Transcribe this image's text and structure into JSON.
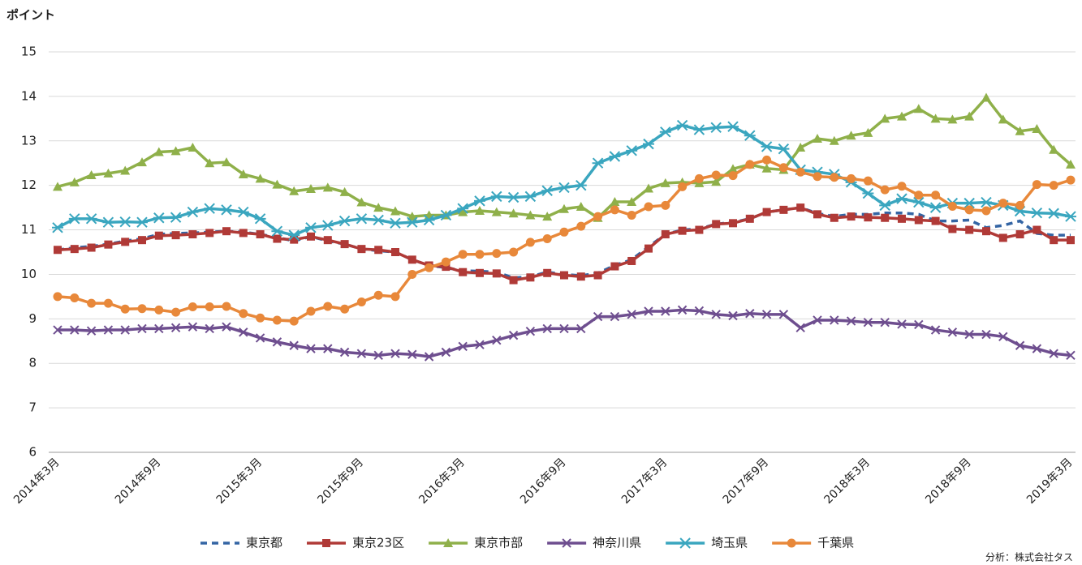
{
  "chart_data": {
    "type": "line",
    "y_label": "ポイント",
    "source": "分析：株式会社タス",
    "categories": [
      "2014年3月",
      null,
      null,
      null,
      null,
      null,
      "2014年9月",
      null,
      null,
      null,
      null,
      null,
      "2015年3月",
      null,
      null,
      null,
      null,
      null,
      "2015年9月",
      null,
      null,
      null,
      null,
      null,
      "2016年3月",
      null,
      null,
      null,
      null,
      null,
      "2016年9月",
      null,
      null,
      null,
      null,
      null,
      "2017年3月",
      null,
      null,
      null,
      null,
      null,
      "2017年9月",
      null,
      null,
      null,
      null,
      null,
      "2018年3月",
      null,
      null,
      null,
      null,
      null,
      "2018年9月",
      null,
      null,
      null,
      null,
      null,
      "2019年3月"
    ],
    "ylim": [
      6,
      15
    ],
    "yticks": [
      6,
      7,
      8,
      9,
      10,
      11,
      12,
      13,
      14,
      15
    ],
    "grid": true,
    "series": [
      {
        "name": "東京都",
        "color": "#3465a4",
        "dash": true,
        "marker": "none",
        "values": [
          10.55,
          10.6,
          10.63,
          10.68,
          10.75,
          10.8,
          10.9,
          10.92,
          10.93,
          10.95,
          10.97,
          10.95,
          10.9,
          10.83,
          10.75,
          10.85,
          10.75,
          10.68,
          10.57,
          10.53,
          10.5,
          10.33,
          10.2,
          10.15,
          10.08,
          10.07,
          10.05,
          9.92,
          9.95,
          10.05,
          10.0,
          9.97,
          10.03,
          10.2,
          10.33,
          10.62,
          10.9,
          11.0,
          11.02,
          11.13,
          11.17,
          11.25,
          11.4,
          11.45,
          11.5,
          11.37,
          11.3,
          11.35,
          11.35,
          11.38,
          11.38,
          11.35,
          11.2,
          11.2,
          11.22,
          11.05,
          11.1,
          11.2,
          10.92,
          10.88,
          10.88
        ]
      },
      {
        "name": "東京23区",
        "color": "#b03a37",
        "dash": false,
        "marker": "square",
        "values": [
          10.55,
          10.57,
          10.6,
          10.67,
          10.73,
          10.77,
          10.87,
          10.88,
          10.9,
          10.93,
          10.97,
          10.93,
          10.9,
          10.8,
          10.78,
          10.85,
          10.77,
          10.68,
          10.57,
          10.55,
          10.5,
          10.33,
          10.2,
          10.17,
          10.05,
          10.03,
          10.02,
          9.87,
          9.93,
          10.03,
          9.98,
          9.95,
          9.98,
          10.18,
          10.3,
          10.58,
          10.9,
          10.98,
          11.0,
          11.13,
          11.15,
          11.25,
          11.4,
          11.45,
          11.5,
          11.35,
          11.27,
          11.3,
          11.28,
          11.27,
          11.25,
          11.22,
          11.2,
          11.02,
          11.0,
          10.97,
          10.82,
          10.9,
          11.0,
          10.77,
          10.77
        ]
      },
      {
        "name": "東京市部",
        "color": "#8fb04a",
        "dash": false,
        "marker": "triangle",
        "values": [
          11.97,
          12.07,
          12.23,
          12.27,
          12.33,
          12.52,
          12.75,
          12.77,
          12.85,
          12.5,
          12.52,
          12.25,
          12.15,
          12.02,
          11.87,
          11.92,
          11.95,
          11.85,
          11.62,
          11.5,
          11.42,
          11.3,
          11.33,
          11.33,
          11.4,
          11.43,
          11.4,
          11.37,
          11.33,
          11.3,
          11.47,
          11.52,
          11.27,
          11.63,
          11.63,
          11.93,
          12.05,
          12.07,
          12.05,
          12.08,
          12.37,
          12.47,
          12.38,
          12.35,
          12.85,
          13.05,
          13.0,
          13.12,
          13.18,
          13.5,
          13.55,
          13.72,
          13.5,
          13.48,
          13.55,
          13.97,
          13.48,
          13.22,
          13.27,
          12.8,
          12.47
        ]
      },
      {
        "name": "神奈川県",
        "color": "#6e4e8f",
        "dash": false,
        "marker": "x",
        "values": [
          8.75,
          8.75,
          8.73,
          8.75,
          8.75,
          8.78,
          8.78,
          8.8,
          8.82,
          8.78,
          8.82,
          8.7,
          8.57,
          8.48,
          8.4,
          8.33,
          8.33,
          8.25,
          8.22,
          8.18,
          8.22,
          8.2,
          8.15,
          8.25,
          8.38,
          8.42,
          8.52,
          8.63,
          8.72,
          8.78,
          8.78,
          8.78,
          9.05,
          9.05,
          9.1,
          9.17,
          9.17,
          9.2,
          9.18,
          9.1,
          9.07,
          9.12,
          9.1,
          9.1,
          8.8,
          8.97,
          8.97,
          8.95,
          8.92,
          8.92,
          8.88,
          8.87,
          8.75,
          8.7,
          8.65,
          8.65,
          8.6,
          8.4,
          8.33,
          8.22,
          8.18
        ]
      },
      {
        "name": "埼玉県",
        "color": "#3aa6bf",
        "dash": false,
        "marker": "star",
        "values": [
          11.05,
          11.25,
          11.25,
          11.17,
          11.18,
          11.17,
          11.27,
          11.28,
          11.4,
          11.48,
          11.45,
          11.4,
          11.25,
          10.97,
          10.88,
          11.05,
          11.1,
          11.2,
          11.25,
          11.22,
          11.15,
          11.17,
          11.22,
          11.33,
          11.48,
          11.65,
          11.75,
          11.73,
          11.75,
          11.88,
          11.95,
          12.0,
          12.5,
          12.65,
          12.78,
          12.93,
          13.2,
          13.35,
          13.25,
          13.3,
          13.32,
          13.12,
          12.87,
          12.82,
          12.35,
          12.3,
          12.25,
          12.07,
          11.82,
          11.55,
          11.7,
          11.62,
          11.5,
          11.6,
          11.6,
          11.62,
          11.55,
          11.42,
          11.38,
          11.37,
          11.3
        ]
      },
      {
        "name": "千葉県",
        "color": "#e8883a",
        "dash": false,
        "marker": "circle",
        "values": [
          9.5,
          9.47,
          9.35,
          9.35,
          9.22,
          9.23,
          9.2,
          9.15,
          9.27,
          9.27,
          9.28,
          9.12,
          9.02,
          8.97,
          8.95,
          9.17,
          9.28,
          9.22,
          9.38,
          9.53,
          9.5,
          10.0,
          10.15,
          10.28,
          10.45,
          10.45,
          10.47,
          10.5,
          10.72,
          10.8,
          10.95,
          11.08,
          11.3,
          11.45,
          11.33,
          11.52,
          11.55,
          11.97,
          12.15,
          12.23,
          12.22,
          12.47,
          12.57,
          12.4,
          12.3,
          12.2,
          12.18,
          12.15,
          12.1,
          11.9,
          11.98,
          11.78,
          11.78,
          11.53,
          11.45,
          11.43,
          11.6,
          11.55,
          12.02,
          12.0,
          12.12
        ]
      }
    ]
  }
}
